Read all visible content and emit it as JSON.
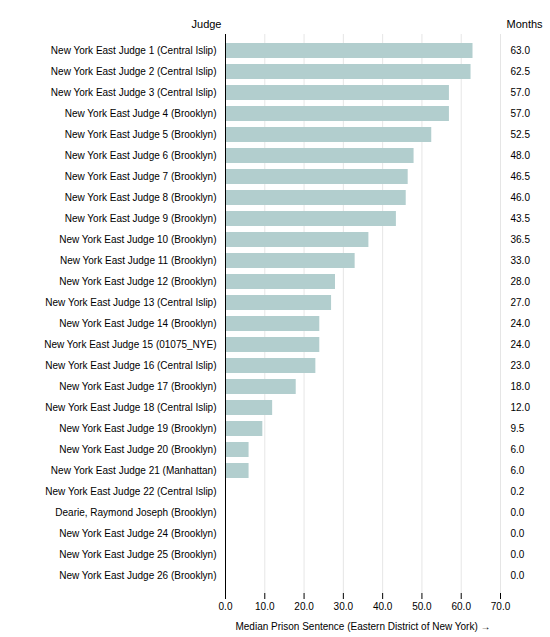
{
  "chart_data": {
    "type": "bar",
    "orientation": "horizontal",
    "ylabel": "Judge",
    "xlabel": "Median Prison Sentence (Eastern District of New York)",
    "annotations": [
      "Months"
    ],
    "categories": [
      "New York East Judge 1 (Central Islip)",
      "New York East Judge 2 (Central Islip)",
      "New York East Judge 3 (Central Islip)",
      "New York East Judge 4 (Brooklyn)",
      "New York East Judge 5 (Brooklyn)",
      "New York East Judge 6 (Brooklyn)",
      "New York East Judge 7 (Brooklyn)",
      "New York East Judge 8 (Brooklyn)",
      "New York East Judge 9 (Brooklyn)",
      "New York East Judge 10 (Brooklyn)",
      "New York East Judge 11 (Brooklyn)",
      "New York East Judge 12 (Brooklyn)",
      "New York East Judge 13 (Central Islip)",
      "New York East Judge 14 (Brooklyn)",
      "New York East Judge 15 (01075_NYE)",
      "New York East Judge 16 (Central Islip)",
      "New York East Judge 17 (Brooklyn)",
      "New York East Judge 18 (Central Islip)",
      "New York East Judge 19 (Brooklyn)",
      "New York East Judge 20 (Brooklyn)",
      "New York East Judge 21 (Manhattan)",
      "New York East Judge 22 (Central Islip)",
      "Dearie, Raymond Joseph (Brooklyn)",
      "New York East Judge 24 (Brooklyn)",
      "New York East Judge 25 (Brooklyn)",
      "New York East Judge 26 (Brooklyn)"
    ],
    "values": [
      63.0,
      62.5,
      57.0,
      57.0,
      52.5,
      48.0,
      46.5,
      46.0,
      43.5,
      36.5,
      33.0,
      28.0,
      27.0,
      24.0,
      24.0,
      23.0,
      18.0,
      12.0,
      9.5,
      6.0,
      6.0,
      0.2,
      0.0,
      0.0,
      0.0,
      0.0
    ],
    "value_labels": [
      "63.0",
      "62.5",
      "57.0",
      "57.0",
      "52.5",
      "48.0",
      "46.5",
      "46.0",
      "43.5",
      "36.5",
      "33.0",
      "28.0",
      "27.0",
      "24.0",
      "24.0",
      "23.0",
      "18.0",
      "12.0",
      "9.5",
      "6.0",
      "6.0",
      "0.2",
      "0.0",
      "0.0",
      "0.0",
      "0.0"
    ],
    "data_labels": true,
    "color": "#b2cece",
    "xlim": [
      0,
      70
    ],
    "xticks": [
      {
        "value": 0,
        "label": "0.0"
      },
      {
        "value": 10,
        "label": "10.0"
      },
      {
        "value": 20,
        "label": "20.0"
      },
      {
        "value": 30,
        "label": "30.0"
      },
      {
        "value": 40,
        "label": "40.0"
      },
      {
        "value": 50,
        "label": "50.0"
      },
      {
        "value": 60,
        "label": "60.0"
      },
      {
        "value": 70,
        "label": "70.0"
      }
    ],
    "grid": true
  }
}
